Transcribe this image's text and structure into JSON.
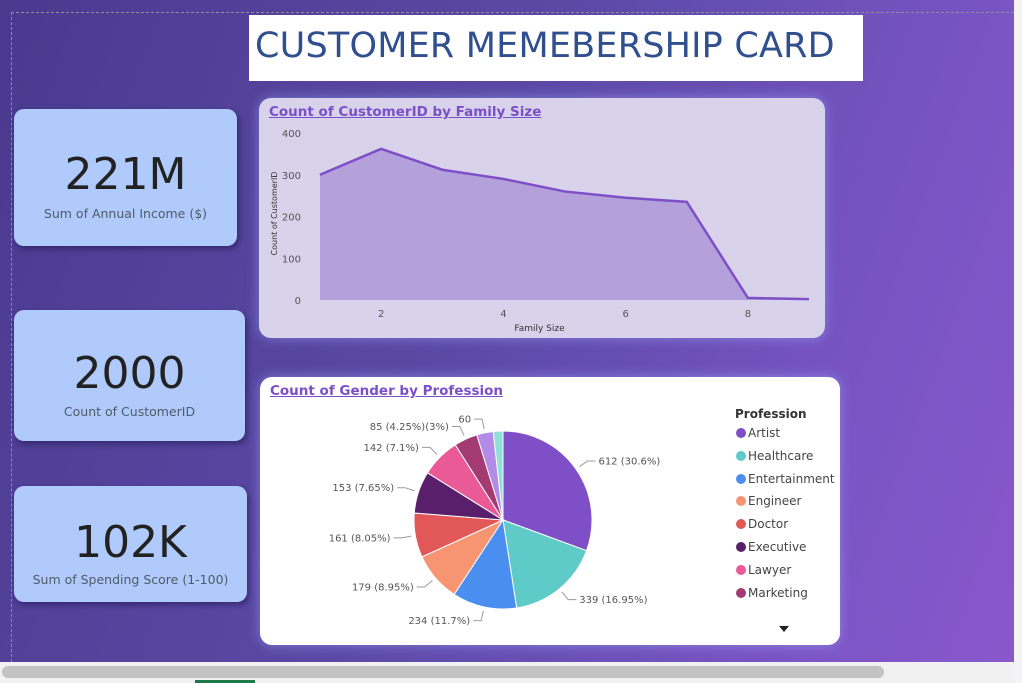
{
  "title": "CUSTOMER MEMEBERSHIP CARD",
  "kpis": [
    {
      "value": "221M",
      "label": "Sum of Annual Income ($)"
    },
    {
      "value": "2000",
      "label": "Count of CustomerID"
    },
    {
      "value": "102K",
      "label": "Sum of Spending Score (1-100)"
    }
  ],
  "colors": {
    "background_start": "#4a3a8e",
    "background_end": "#8a58cc",
    "kpi_card": "#b0cbfb",
    "title_text": "#2f4f8f",
    "chart_title": "#7b4fc8",
    "area_fill": "#b09ad9",
    "area_line": "#7f4fc7"
  },
  "area_chart": {
    "title": "Count of CustomerID by Family Size",
    "xlabel": "Family Size",
    "ylabel": "Count of CustomerID",
    "y_ticks": [
      "0",
      "100",
      "200",
      "300",
      "400"
    ],
    "x_ticks": [
      "2",
      "4",
      "6",
      "8"
    ]
  },
  "pie_chart": {
    "title": "Count of Gender by Profession",
    "legend_title": "Profession",
    "legend_items": [
      "Artist",
      "Healthcare",
      "Entertainment",
      "Engineer",
      "Doctor",
      "Executive",
      "Lawyer",
      "Marketing"
    ],
    "slice_labels": [
      "612 (30.6%)",
      "339 (16.95%)",
      "234 (11.7%)",
      "179 (8.95%)",
      "161 (8.05%)",
      "153 (7.65%)",
      "142 (7.1%)",
      "85 (4.25%)(3%)",
      "60"
    ],
    "more_icon": "chevron-down-icon"
  },
  "chart_data": [
    {
      "type": "area",
      "title": "Count of CustomerID by Family Size",
      "xlabel": "Family Size",
      "ylabel": "Count of CustomerID",
      "x": [
        1,
        2,
        3,
        4,
        5,
        6,
        7,
        8,
        9
      ],
      "values": [
        300,
        362,
        312,
        290,
        260,
        245,
        235,
        5,
        2
      ],
      "xlim": [
        1,
        9
      ],
      "ylim": [
        0,
        400
      ],
      "x_ticks": [
        2,
        4,
        6,
        8
      ],
      "y_ticks": [
        0,
        100,
        200,
        300,
        400
      ],
      "grid": false
    },
    {
      "type": "pie",
      "title": "Count of Gender by Profession",
      "legend_title": "Profession",
      "legend_position": "right",
      "categories": [
        "Artist",
        "Healthcare",
        "Entertainment",
        "Engineer",
        "Doctor",
        "Executive",
        "Lawyer",
        "Marketing",
        "",
        ""
      ],
      "values": [
        612,
        339,
        234,
        179,
        161,
        153,
        142,
        85,
        60,
        35
      ],
      "colors": [
        "#7f4fc7",
        "#5ecbc8",
        "#4a8ff0",
        "#f79572",
        "#e25757",
        "#5a1f6b",
        "#e95a97",
        "#a33b72",
        "#b18be6",
        "#8fe0d8"
      ]
    }
  ]
}
